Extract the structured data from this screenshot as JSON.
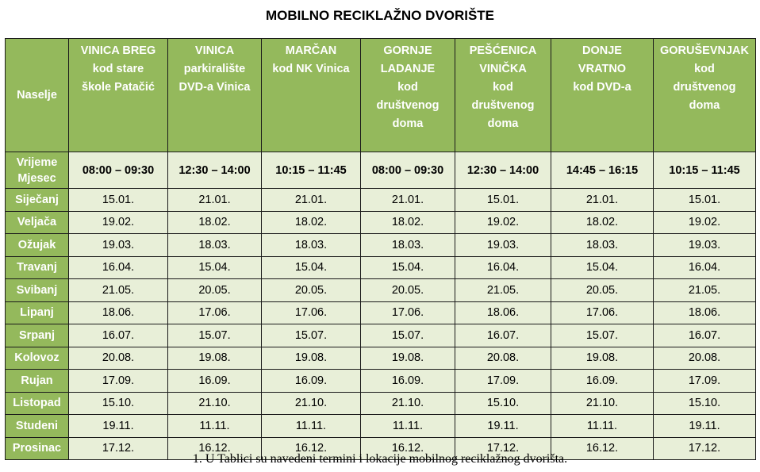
{
  "title": "MOBILNO RECIKLAŽNO DVORIŠTE",
  "header": {
    "naselje": "Naselje",
    "vrijeme": "Vrijeme",
    "mjesec": "Mjesec"
  },
  "locations": [
    {
      "lines": [
        "VINICA BREG",
        "kod stare",
        "škole Patačić"
      ],
      "time": "08:00 – 09:30"
    },
    {
      "lines": [
        "VINICA",
        "parkiralište",
        "DVD-a Vinica"
      ],
      "time": "12:30 – 14:00"
    },
    {
      "lines": [
        "MARČAN",
        "kod NK Vinica"
      ],
      "time": "10:15 – 11:45"
    },
    {
      "lines": [
        "GORNJE",
        "LADANJE",
        "kod",
        "društvenog",
        "doma"
      ],
      "time": "08:00 – 09:30"
    },
    {
      "lines": [
        "PEŠĆENICA",
        "VINIČKA",
        "kod",
        "društvenog",
        "doma"
      ],
      "time": "12:30 – 14:00"
    },
    {
      "lines": [
        "DONJE",
        "VRATNO",
        "kod DVD-a"
      ],
      "time": "14:45 – 16:15"
    },
    {
      "lines": [
        "GORUŠEVNJAK",
        "kod",
        "društvenog",
        "doma"
      ],
      "time": "10:15 – 11:45"
    }
  ],
  "rows": [
    {
      "month": "Siječanj",
      "dates": [
        "15.01.",
        "21.01.",
        "21.01.",
        "21.01.",
        "15.01.",
        "21.01.",
        "15.01."
      ]
    },
    {
      "month": "Veljača",
      "dates": [
        "19.02.",
        "18.02.",
        "18.02.",
        "18.02.",
        "19.02.",
        "18.02.",
        "19.02."
      ]
    },
    {
      "month": "Ožujak",
      "dates": [
        "19.03.",
        "18.03.",
        "18.03.",
        "18.03.",
        "19.03.",
        "18.03.",
        "19.03."
      ]
    },
    {
      "month": "Travanj",
      "dates": [
        "16.04.",
        "15.04.",
        "15.04.",
        "15.04.",
        "16.04.",
        "15.04.",
        "16.04."
      ]
    },
    {
      "month": "Svibanj",
      "dates": [
        "21.05.",
        "20.05.",
        "20.05.",
        "20.05.",
        "21.05.",
        "20.05.",
        "21.05."
      ]
    },
    {
      "month": "Lipanj",
      "dates": [
        "18.06.",
        "17.06.",
        "17.06.",
        "17.06.",
        "18.06.",
        "17.06.",
        "18.06."
      ]
    },
    {
      "month": "Srpanj",
      "dates": [
        "16.07.",
        "15.07.",
        "15.07.",
        "15.07.",
        "16.07.",
        "15.07.",
        "16.07."
      ]
    },
    {
      "month": "Kolovoz",
      "dates": [
        "20.08.",
        "19.08.",
        "19.08.",
        "19.08.",
        "20.08.",
        "19.08.",
        "20.08."
      ]
    },
    {
      "month": "Rujan",
      "dates": [
        "17.09.",
        "16.09.",
        "16.09.",
        "16.09.",
        "17.09.",
        "16.09.",
        "17.09."
      ]
    },
    {
      "month": "Listopad",
      "dates": [
        "15.10.",
        "21.10.",
        "21.10.",
        "21.10.",
        "15.10.",
        "21.10.",
        "15.10."
      ]
    },
    {
      "month": "Studeni",
      "dates": [
        "19.11.",
        "11.11.",
        "11.11.",
        "11.11.",
        "19.11.",
        "11.11.",
        "19.11."
      ]
    },
    {
      "month": "Prosinac",
      "dates": [
        "17.12.",
        "16.12.",
        "16.12.",
        "16.12.",
        "17.12.",
        "16.12.",
        "17.12."
      ]
    }
  ],
  "footnote": "1.  U Tablici su navedeni termini i lokacije mobilnog reciklažnog dvorišta.",
  "colors": {
    "header_green": "#94b95c",
    "cell_light": "#e8efd8"
  }
}
